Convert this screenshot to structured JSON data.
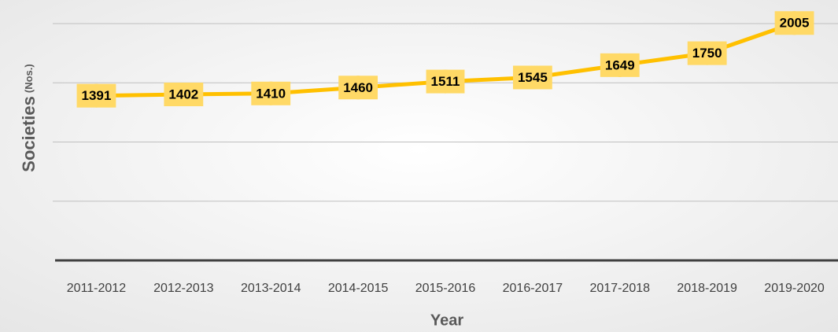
{
  "chart_data": {
    "type": "line",
    "xlabel": "Year",
    "ylabel": "Societies",
    "ylabel_unit": "(Nos.)",
    "categories": [
      "2011-2012",
      "2012-2013",
      "2013-2014",
      "2014-2015",
      "2015-2016",
      "2016-2017",
      "2017-2018",
      "2018-2019",
      "2019-2020"
    ],
    "series": [
      {
        "name": "Societies",
        "color": "#ffc000",
        "values": [
          1391,
          1402,
          1410,
          1460,
          1511,
          1545,
          1649,
          1750,
          2005
        ]
      }
    ],
    "ylim": [
      0,
      2000
    ],
    "yticks": [
      0,
      500,
      1000,
      1500,
      2000
    ],
    "grid": true
  }
}
